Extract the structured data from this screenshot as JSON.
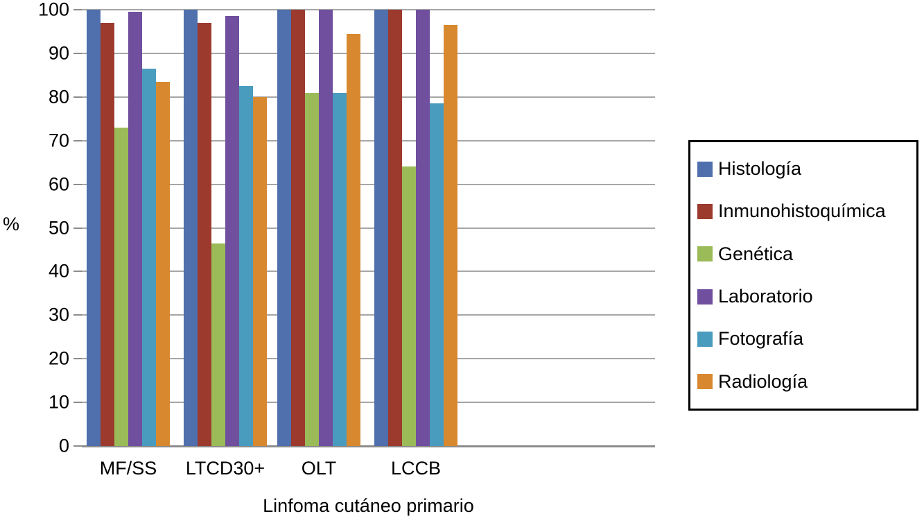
{
  "chart_data": {
    "type": "bar",
    "title": "",
    "xlabel": "Linfoma cutáneo primario",
    "ylabel": "%",
    "ylim": [
      0,
      100
    ],
    "ytick_step": 10,
    "yticks": [
      0,
      10,
      20,
      30,
      40,
      50,
      60,
      70,
      80,
      90,
      100
    ],
    "grid": true,
    "legend_position": "right",
    "categories": [
      "MF/SS",
      "LTCD30+",
      "OLT",
      "LCCB"
    ],
    "series": [
      {
        "name": "Histología",
        "color": "#4f6fad",
        "values": [
          100,
          100,
          100,
          100
        ]
      },
      {
        "name": "Inmunohistoquímica",
        "color": "#9c3a2e",
        "values": [
          97,
          97,
          100,
          100
        ]
      },
      {
        "name": "Genética",
        "color": "#9bbb59",
        "values": [
          73,
          46.5,
          81,
          64
        ]
      },
      {
        "name": "Laboratorio",
        "color": "#6f4f9e",
        "values": [
          99.5,
          98.5,
          100,
          100
        ]
      },
      {
        "name": "Fotografía",
        "color": "#4a9cbe",
        "values": [
          86.5,
          82.5,
          81,
          78.5
        ]
      },
      {
        "name": "Radiología",
        "color": "#d8892f",
        "values": [
          83.5,
          80,
          94.5,
          96.5
        ]
      }
    ]
  }
}
